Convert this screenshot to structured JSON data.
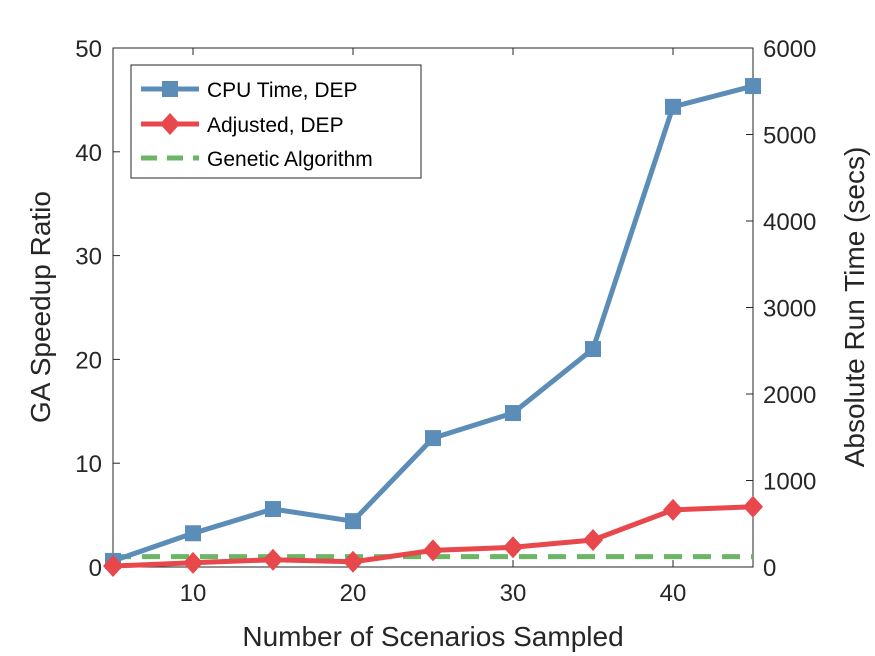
{
  "chart_data": {
    "type": "line",
    "title": "",
    "xlabel": "Number of Scenarios Sampled",
    "ylabel": "GA Speedup Ratio",
    "y2label": "Absolute Run Time (secs)",
    "xlim": [
      5,
      45
    ],
    "ylim": [
      0,
      50
    ],
    "y2lim": [
      0,
      6000
    ],
    "x_ticks": [
      10,
      20,
      30,
      40
    ],
    "y_ticks": [
      0,
      10,
      20,
      30,
      40,
      50
    ],
    "y2_ticks": [
      0,
      1000,
      2000,
      3000,
      4000,
      5000,
      6000
    ],
    "grid": false,
    "legend_position": "top-left",
    "x": [
      5,
      10,
      15,
      20,
      25,
      30,
      35,
      40,
      45
    ],
    "series": [
      {
        "name": "CPU Time, DEP",
        "axis": "right",
        "color": "#5B8DB8",
        "marker": "square",
        "line_style": "solid",
        "values": [
          70,
          390,
          670,
          530,
          1490,
          1780,
          2520,
          5320,
          5560
        ]
      },
      {
        "name": "Adjusted, DEP",
        "axis": "left",
        "color": "#E8474C",
        "marker": "diamond",
        "line_style": "solid",
        "values": [
          0.1,
          0.4,
          0.7,
          0.5,
          1.6,
          1.9,
          2.6,
          5.5,
          5.8
        ]
      },
      {
        "name": "Genetic Algorithm",
        "axis": "left",
        "color": "#6AB665",
        "marker": "none",
        "line_style": "dashed",
        "values": [
          1,
          1,
          1,
          1,
          1,
          1,
          1,
          1,
          1
        ]
      }
    ]
  }
}
